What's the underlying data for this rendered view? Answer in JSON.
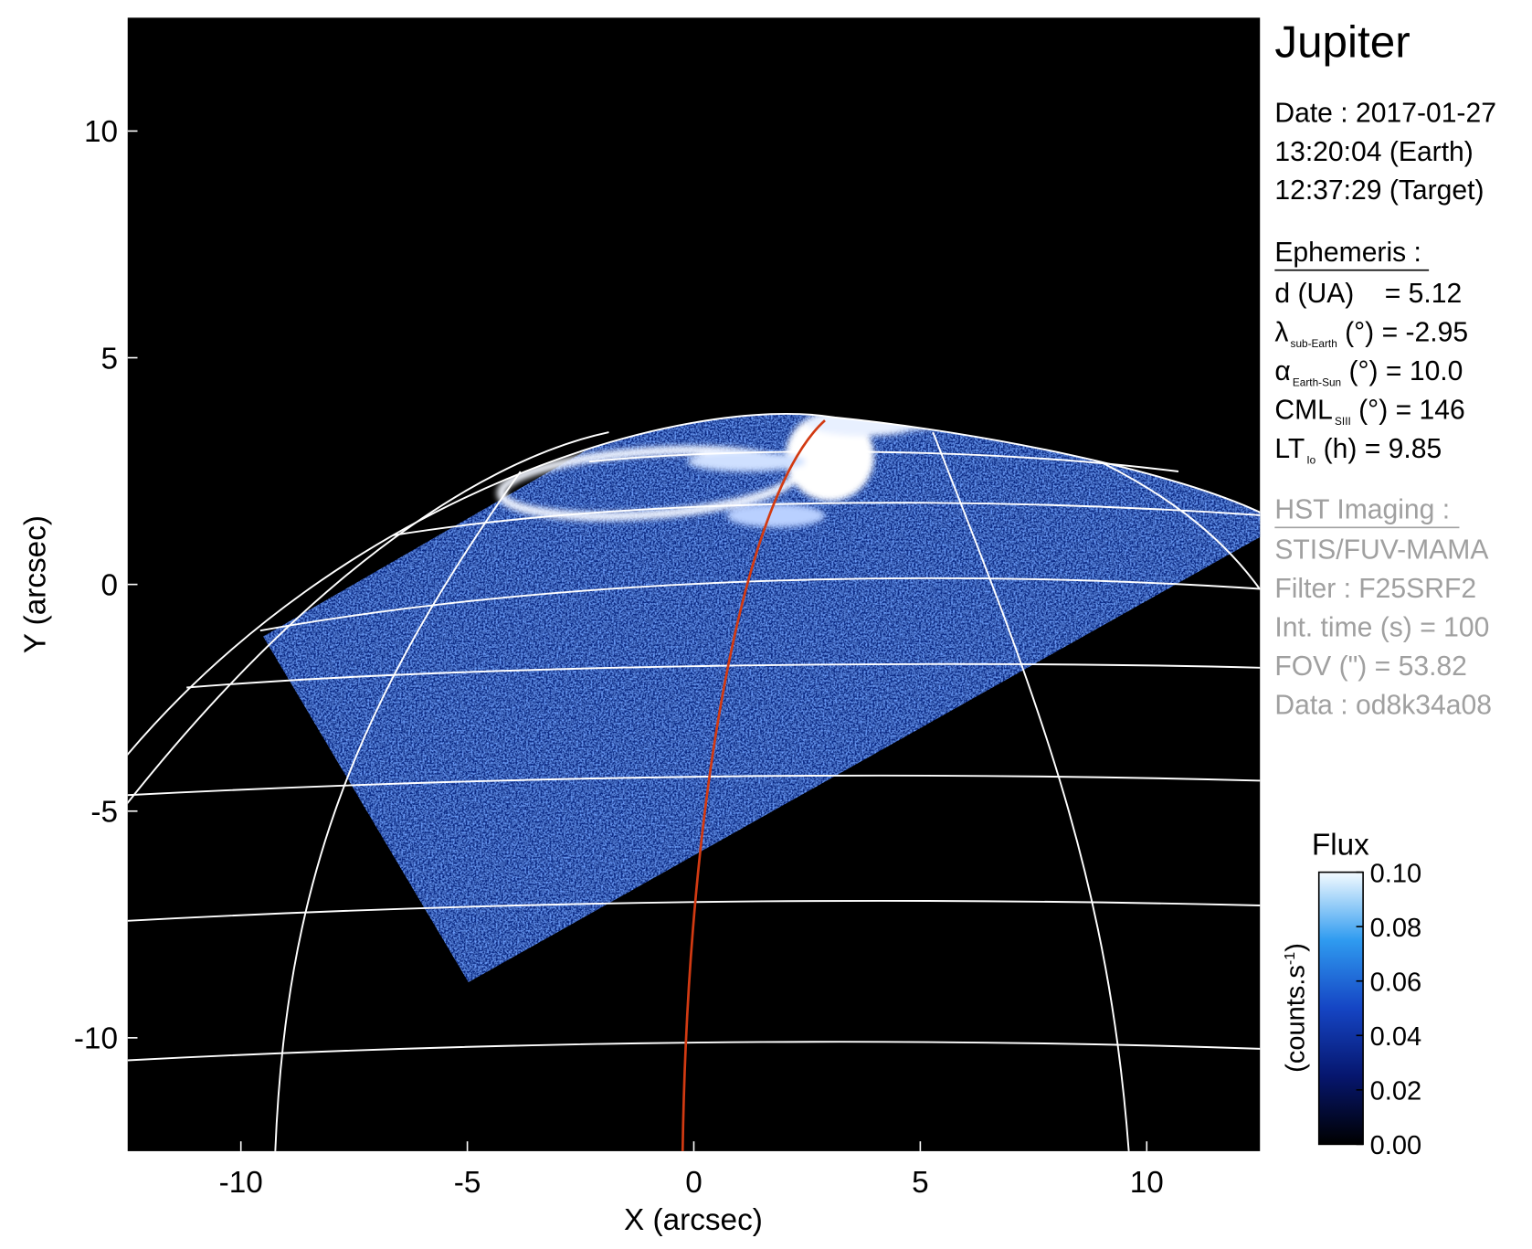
{
  "chart_data": {
    "type": "image",
    "xlabel": "X (arcsec)",
    "ylabel": "Y (arcsec)",
    "xlim": [
      -12.5,
      12.5
    ],
    "ylim": [
      -12.5,
      12.5
    ],
    "xticks": [
      -10,
      -5,
      0,
      5,
      10
    ],
    "yticks": [
      -10,
      -5,
      0,
      5,
      10
    ],
    "colorbar": {
      "title": "Flux",
      "label": {
        "main": "(counts.s",
        "sup": "-1",
        "rest": ")"
      },
      "lim": [
        0,
        0.1
      ],
      "ticks": [
        {
          "value": 0,
          "label": "0.00"
        },
        {
          "value": 0.02,
          "label": "0.02"
        },
        {
          "value": 0.04,
          "label": "0.04"
        },
        {
          "value": 0.06,
          "label": "0.06"
        },
        {
          "value": 0.08,
          "label": "0.08"
        },
        {
          "value": 0.1,
          "label": "0.10"
        }
      ]
    }
  },
  "panel": {
    "title": "Jupiter",
    "date": [
      "Date : 2017-01-27",
      "13:20:04 (Earth)",
      "12:37:29 (Target)"
    ],
    "ephemeris": {
      "heading": "Ephemeris :",
      "lines": [
        {
          "main": "d (UA)    = 5.12"
        },
        {
          "main": "λ",
          "sub": "sub-Earth",
          "rest": " (°) = -2.95"
        },
        {
          "main": "α",
          "sub": "Earth-Sun",
          "rest": " (°) = 10.0"
        },
        {
          "main": "CML",
          "sub": "SIII",
          "rest": " (°) = 146"
        },
        {
          "main": "LT",
          "sub": "Io",
          "rest": " (h) = 9.85"
        }
      ]
    },
    "instrument": {
      "heading": "HST Imaging :",
      "lines": [
        "STIS/FUV-MAMA",
        "Filter : F25SRF2",
        "Int. time (s) = 100",
        "FOV (\") = 53.82",
        "Data : od8k34a08"
      ]
    }
  }
}
